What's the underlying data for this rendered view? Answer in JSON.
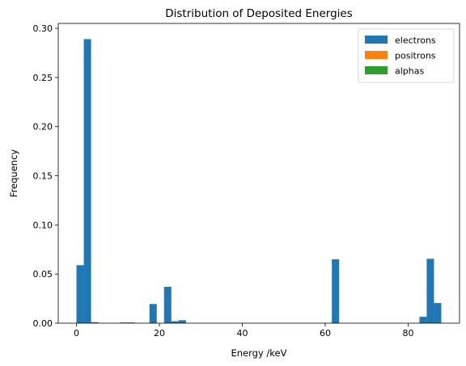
{
  "chart_data": {
    "type": "bar",
    "title": "Distribution of Deposited Energies",
    "xlabel": "Energy /keV",
    "ylabel": "Frequency",
    "xlim": [
      -4.4,
      92.4
    ],
    "ylim": [
      0,
      0.305
    ],
    "xticks": [
      0,
      20,
      40,
      60,
      80
    ],
    "yticks": [
      0.0,
      0.05,
      0.1,
      0.15,
      0.2,
      0.25,
      0.3
    ],
    "bin_width": 1.76,
    "legend_position": "top-right",
    "grid": false,
    "series": [
      {
        "name": "electrons",
        "color": "#1f77b4",
        "bins": [
          {
            "x": 0.0,
            "value": 0.059
          },
          {
            "x": 1.76,
            "value": 0.289
          },
          {
            "x": 3.52,
            "value": 0.001
          },
          {
            "x": 10.56,
            "value": 0.0007
          },
          {
            "x": 12.32,
            "value": 0.0007
          },
          {
            "x": 17.6,
            "value": 0.0195
          },
          {
            "x": 21.12,
            "value": 0.037
          },
          {
            "x": 22.88,
            "value": 0.002
          },
          {
            "x": 24.64,
            "value": 0.003
          },
          {
            "x": 61.6,
            "value": 0.065
          },
          {
            "x": 82.72,
            "value": 0.0065
          },
          {
            "x": 84.48,
            "value": 0.0655
          },
          {
            "x": 86.24,
            "value": 0.0205
          }
        ]
      },
      {
        "name": "positrons",
        "color": "#ff7f0e",
        "bins": []
      },
      {
        "name": "alphas",
        "color": "#2ca02c",
        "bins": []
      }
    ]
  }
}
